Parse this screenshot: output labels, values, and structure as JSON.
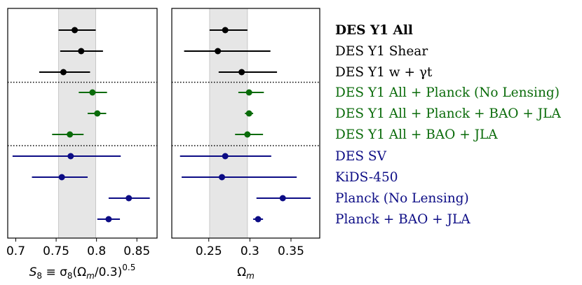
{
  "chart_data": [
    {
      "type": "scatter",
      "panel": "left",
      "xlabel_main": "S",
      "xlabel_sub": "8",
      "xlabel_rest": " ≡ σ",
      "xlabel_sub2": "8",
      "xlabel_rest2": "(Ω",
      "xlabel_sub3": "m",
      "xlabel_rest3": "/0.3)",
      "xlabel_sup": "0.5",
      "xlim": [
        0.69,
        0.875
      ],
      "xticks": [
        0.7,
        0.75,
        0.8,
        0.85
      ],
      "xtick_labels": [
        "0.7",
        "0.75",
        "0.8",
        "0.85"
      ],
      "band": [
        0.753,
        0.799
      ],
      "points": [
        {
          "value": 0.773,
          "err_low": 0.753,
          "err_high": 0.799
        },
        {
          "value": 0.781,
          "err_low": 0.755,
          "err_high": 0.808
        },
        {
          "value": 0.759,
          "err_low": 0.729,
          "err_high": 0.792
        },
        {
          "value": 0.795,
          "err_low": 0.778,
          "err_high": 0.813
        },
        {
          "value": 0.801,
          "err_low": 0.789,
          "err_high": 0.812
        },
        {
          "value": 0.767,
          "err_low": 0.745,
          "err_high": 0.784
        },
        {
          "value": 0.768,
          "err_low": 0.696,
          "err_high": 0.83
        },
        {
          "value": 0.757,
          "err_low": 0.72,
          "err_high": 0.789
        },
        {
          "value": 0.84,
          "err_low": 0.815,
          "err_high": 0.866
        },
        {
          "value": 0.815,
          "err_low": 0.801,
          "err_high": 0.829
        }
      ]
    },
    {
      "type": "scatter",
      "panel": "right",
      "xlabel_main": "Ω",
      "xlabel_sub": "m",
      "xlim": [
        0.205,
        0.385
      ],
      "xticks": [
        0.25,
        0.3,
        0.35
      ],
      "xtick_labels": [
        "0.25",
        "0.3",
        "0.35"
      ],
      "band": [
        0.251,
        0.297
      ],
      "points": [
        {
          "value": 0.27,
          "err_low": 0.251,
          "err_high": 0.297
        },
        {
          "value": 0.261,
          "err_low": 0.22,
          "err_high": 0.325
        },
        {
          "value": 0.29,
          "err_low": 0.262,
          "err_high": 0.333
        },
        {
          "value": 0.299,
          "err_low": 0.286,
          "err_high": 0.317
        },
        {
          "value": 0.299,
          "err_low": 0.294,
          "err_high": 0.304
        },
        {
          "value": 0.297,
          "err_low": 0.282,
          "err_high": 0.316
        },
        {
          "value": 0.27,
          "err_low": 0.215,
          "err_high": 0.326
        },
        {
          "value": 0.266,
          "err_low": 0.217,
          "err_high": 0.357
        },
        {
          "value": 0.34,
          "err_low": 0.308,
          "err_high": 0.374
        },
        {
          "value": 0.31,
          "err_low": 0.304,
          "err_high": 0.316
        }
      ]
    }
  ],
  "rows": [
    {
      "label": "DES Y1 All",
      "color": "#000000",
      "bold": true
    },
    {
      "label": "DES Y1 Shear",
      "color": "#000000",
      "bold": false
    },
    {
      "label": "DES Y1 w + γt",
      "color": "#000000",
      "bold": false
    },
    {
      "label": "DES Y1 All + Planck (No Lensing)",
      "color": "#0a6b0a",
      "bold": false
    },
    {
      "label": "DES Y1 All + Planck + BAO + JLA",
      "color": "#0a6b0a",
      "bold": false
    },
    {
      "label": "DES Y1 All + BAO + JLA",
      "color": "#0a6b0a",
      "bold": false
    },
    {
      "label": "DES SV",
      "color": "#0c0c85",
      "bold": false
    },
    {
      "label": "KiDS-450",
      "color": "#0c0c85",
      "bold": false
    },
    {
      "label": "Planck (No Lensing)",
      "color": "#0c0c85",
      "bold": false
    },
    {
      "label": "Planck + BAO + JLA",
      "color": "#0c0c85",
      "bold": false
    }
  ],
  "separators_after_rows": [
    2,
    5
  ],
  "colors": {
    "band": "#e6e6e6",
    "band_edge": "#c8c8c8"
  }
}
